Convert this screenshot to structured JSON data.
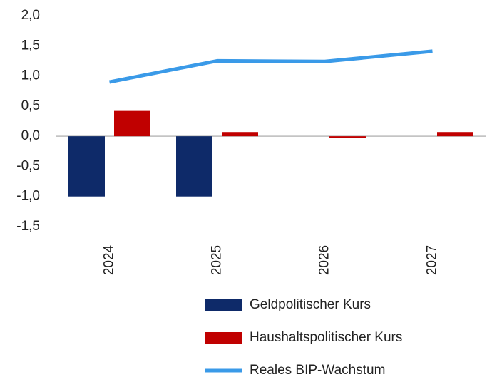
{
  "chart_data": {
    "type": "bar",
    "categories": [
      "2024",
      "2025",
      "2026",
      "2027"
    ],
    "series": [
      {
        "name": "Geldpolitischer Kurs",
        "type": "bar",
        "color": "#0e2a69",
        "values": [
          -1.0,
          -1.0,
          0,
          0
        ]
      },
      {
        "name": "Haushaltspolitischer Kurs",
        "type": "bar",
        "color": "#c00000",
        "values": [
          0.42,
          0.07,
          -0.03,
          0.07
        ]
      },
      {
        "name": "Reales BIP-Wachstum",
        "type": "line",
        "color": "#3a9ae8",
        "values": [
          0.9,
          1.25,
          1.24,
          1.41
        ]
      }
    ],
    "ylim": [
      -1.5,
      2.0
    ],
    "yticks": [
      {
        "value": -1.5,
        "label": "-1,5"
      },
      {
        "value": -1.0,
        "label": "-1,0"
      },
      {
        "value": -0.5,
        "label": "-0,5"
      },
      {
        "value": 0.0,
        "label": "0,0"
      },
      {
        "value": 0.5,
        "label": "0,5"
      },
      {
        "value": 1.0,
        "label": "1,0"
      },
      {
        "value": 1.5,
        "label": "1,5"
      },
      {
        "value": 2.0,
        "label": "2,0"
      }
    ],
    "grid": false
  }
}
